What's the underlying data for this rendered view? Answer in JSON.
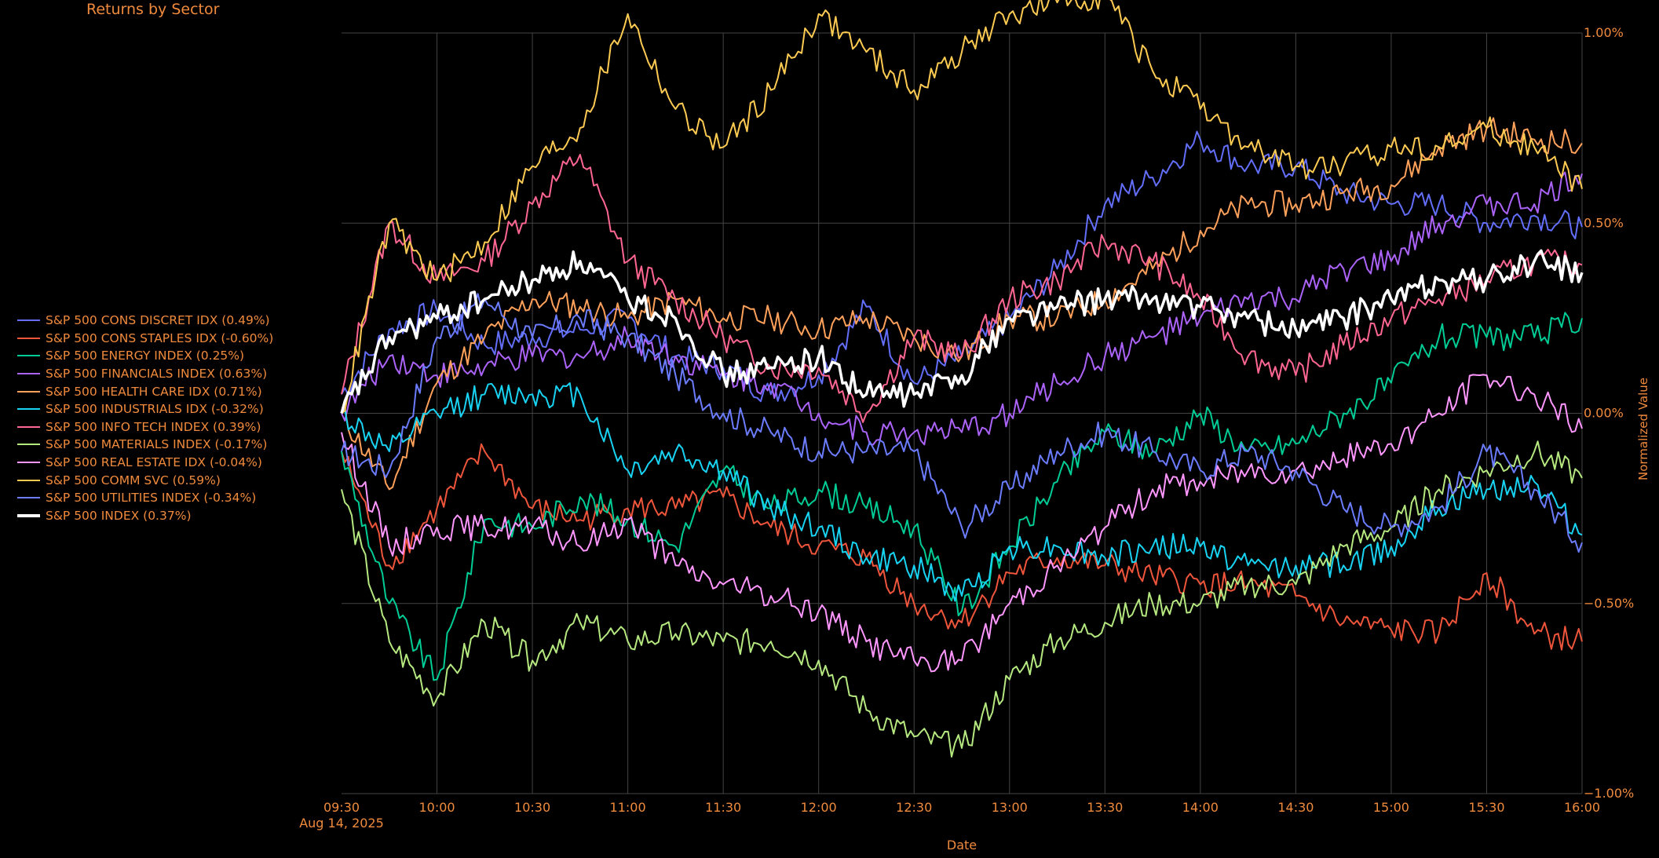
{
  "chart_data": {
    "type": "line",
    "title": "Returns by Sector",
    "xlabel": "Date",
    "ylabel": "Normalized Value",
    "date_label": "Aug 14, 2025",
    "x_ticks": [
      "09:30",
      "10:00",
      "10:30",
      "11:00",
      "11:30",
      "12:00",
      "12:30",
      "13:00",
      "13:30",
      "14:00",
      "14:30",
      "15:00",
      "15:30",
      "16:00"
    ],
    "x_range": [
      "09:30",
      "16:00"
    ],
    "y_ticks": [
      {
        "value": 1.0,
        "label": "1.00%"
      },
      {
        "value": 0.5,
        "label": "0.50%"
      },
      {
        "value": 0.0,
        "label": "0.00%"
      },
      {
        "value": -0.5,
        "label": "−0.50%"
      },
      {
        "value": -1.0,
        "label": "−1.00%"
      }
    ],
    "ylim": [
      -1.0,
      1.0
    ],
    "y_axis_side": "right",
    "grid": true,
    "legend_position": "left",
    "colors": {
      "background": "#000000",
      "text": "#f08a3c",
      "grid": "#444444"
    },
    "x": [
      "09:30",
      "09:45",
      "10:00",
      "10:15",
      "10:30",
      "10:45",
      "11:00",
      "11:15",
      "11:30",
      "11:45",
      "12:00",
      "12:15",
      "12:30",
      "12:45",
      "13:00",
      "13:15",
      "13:30",
      "13:45",
      "14:00",
      "14:15",
      "14:30",
      "14:45",
      "15:00",
      "15:15",
      "15:30",
      "15:45",
      "16:00"
    ],
    "series": [
      {
        "name": "S&P 500 CONS DISCRET IDX (0.49%)",
        "color": "#636efa",
        "width": 2,
        "values": [
          0.05,
          0.22,
          0.27,
          0.18,
          0.2,
          0.22,
          0.25,
          0.15,
          0.12,
          0.05,
          0.1,
          0.28,
          0.08,
          0.15,
          0.25,
          0.38,
          0.55,
          0.62,
          0.72,
          0.65,
          0.65,
          0.58,
          0.55,
          0.55,
          0.5,
          0.52,
          0.49
        ]
      },
      {
        "name": "S&P 500 CONS STAPLES IDX (-0.60%)",
        "color": "#ef553b",
        "width": 2,
        "values": [
          -0.1,
          -0.4,
          -0.25,
          -0.1,
          -0.25,
          -0.28,
          -0.25,
          -0.25,
          -0.22,
          -0.3,
          -0.35,
          -0.38,
          -0.5,
          -0.55,
          -0.42,
          -0.38,
          -0.4,
          -0.43,
          -0.45,
          -0.45,
          -0.48,
          -0.55,
          -0.57,
          -0.58,
          -0.42,
          -0.58,
          -0.6
        ]
      },
      {
        "name": "S&P 500 ENERGY INDEX (0.25%)",
        "color": "#00cc96",
        "width": 2,
        "values": [
          -0.1,
          -0.5,
          -0.7,
          -0.28,
          -0.3,
          -0.22,
          -0.28,
          -0.35,
          -0.15,
          -0.25,
          -0.2,
          -0.25,
          -0.3,
          -0.52,
          -0.35,
          -0.18,
          -0.05,
          -0.1,
          0.0,
          -0.1,
          -0.08,
          0.0,
          0.08,
          0.2,
          0.2,
          0.2,
          0.25
        ]
      },
      {
        "name": "S&P 500 FINANCIALS INDEX (0.63%)",
        "color": "#ab63fa",
        "width": 2,
        "values": [
          0.0,
          0.15,
          0.1,
          0.12,
          0.15,
          0.15,
          0.2,
          0.15,
          0.1,
          0.08,
          0.0,
          -0.05,
          -0.05,
          -0.05,
          0.0,
          0.08,
          0.15,
          0.2,
          0.25,
          0.3,
          0.3,
          0.38,
          0.4,
          0.5,
          0.55,
          0.55,
          0.63
        ]
      },
      {
        "name": "S&P 500 HEALTH CARE IDX (0.71%)",
        "color": "#ffa15a",
        "width": 2,
        "values": [
          0.0,
          -0.2,
          0.08,
          0.2,
          0.3,
          0.28,
          0.25,
          0.3,
          0.25,
          0.25,
          0.22,
          0.25,
          0.2,
          0.15,
          0.25,
          0.25,
          0.3,
          0.38,
          0.48,
          0.55,
          0.55,
          0.58,
          0.6,
          0.7,
          0.75,
          0.72,
          0.71
        ]
      },
      {
        "name": "S&P 500 INDUSTRIALS IDX (-0.32%)",
        "color": "#19d3f3",
        "width": 2,
        "values": [
          0.0,
          -0.1,
          0.0,
          0.05,
          0.05,
          0.05,
          -0.15,
          -0.1,
          -0.15,
          -0.25,
          -0.3,
          -0.38,
          -0.4,
          -0.48,
          -0.35,
          -0.35,
          -0.38,
          -0.35,
          -0.35,
          -0.4,
          -0.4,
          -0.4,
          -0.35,
          -0.25,
          -0.2,
          -0.18,
          -0.32
        ]
      },
      {
        "name": "S&P 500 INFO TECH INDEX (0.39%)",
        "color": "#ff6692",
        "width": 2,
        "values": [
          0.05,
          0.5,
          0.35,
          0.4,
          0.55,
          0.68,
          0.4,
          0.3,
          0.2,
          0.12,
          0.12,
          0.0,
          0.2,
          0.15,
          0.3,
          0.35,
          0.45,
          0.4,
          0.3,
          0.15,
          0.1,
          0.18,
          0.25,
          0.3,
          0.35,
          0.4,
          0.39
        ]
      },
      {
        "name": "S&P 500 MATERIALS INDEX (-0.17%)",
        "color": "#b6e880",
        "width": 2,
        "values": [
          -0.2,
          -0.6,
          -0.75,
          -0.55,
          -0.65,
          -0.55,
          -0.6,
          -0.58,
          -0.6,
          -0.6,
          -0.65,
          -0.78,
          -0.85,
          -0.88,
          -0.7,
          -0.6,
          -0.55,
          -0.5,
          -0.5,
          -0.45,
          -0.45,
          -0.35,
          -0.3,
          -0.2,
          -0.15,
          -0.1,
          -0.17
        ]
      },
      {
        "name": "S&P 500 REAL ESTATE IDX (-0.04%)",
        "color": "#ff97ff",
        "width": 2,
        "values": [
          -0.05,
          -0.35,
          -0.3,
          -0.3,
          -0.3,
          -0.35,
          -0.28,
          -0.4,
          -0.45,
          -0.48,
          -0.52,
          -0.6,
          -0.65,
          -0.65,
          -0.5,
          -0.4,
          -0.3,
          -0.2,
          -0.18,
          -0.15,
          -0.15,
          -0.12,
          -0.08,
          0.0,
          0.1,
          0.05,
          -0.04
        ]
      },
      {
        "name": "S&P 500 COMM SVC (0.59%)",
        "color": "#fecb52",
        "width": 2,
        "values": [
          0.0,
          0.5,
          0.35,
          0.45,
          0.65,
          0.75,
          1.05,
          0.8,
          0.7,
          0.85,
          1.05,
          0.95,
          0.85,
          0.95,
          1.05,
          1.08,
          1.1,
          0.9,
          0.8,
          0.7,
          0.65,
          0.65,
          0.7,
          0.7,
          0.75,
          0.7,
          0.59
        ]
      },
      {
        "name": "S&P 500 UTILITIES INDEX (-0.34%)",
        "color": "#6b7cff",
        "width": 2,
        "values": [
          -0.1,
          -0.15,
          0.2,
          0.3,
          0.2,
          0.25,
          0.2,
          0.1,
          0.0,
          -0.05,
          -0.1,
          -0.1,
          -0.1,
          -0.3,
          -0.2,
          -0.1,
          -0.05,
          -0.1,
          -0.15,
          -0.1,
          -0.15,
          -0.25,
          -0.3,
          -0.25,
          -0.1,
          -0.2,
          -0.34
        ]
      },
      {
        "name": "S&P 500 INDEX (0.37%)",
        "color": "#ffffff",
        "width": 3.5,
        "values": [
          0.0,
          0.2,
          0.25,
          0.3,
          0.35,
          0.4,
          0.3,
          0.25,
          0.1,
          0.12,
          0.15,
          0.05,
          0.05,
          0.1,
          0.25,
          0.28,
          0.3,
          0.3,
          0.28,
          0.25,
          0.22,
          0.25,
          0.3,
          0.35,
          0.35,
          0.4,
          0.37
        ]
      }
    ]
  }
}
